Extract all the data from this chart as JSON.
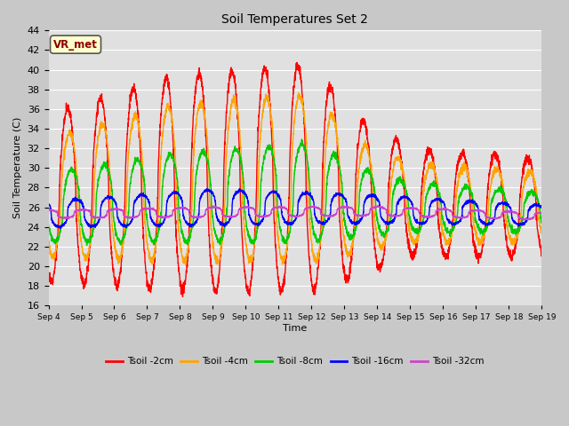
{
  "title": "Soil Temperatures Set 2",
  "xlabel": "Time",
  "ylabel": "Soil Temperature (C)",
  "ylim": [
    16,
    44
  ],
  "x_tick_labels": [
    "Sep 4",
    "Sep 5",
    "Sep 6",
    "Sep 7",
    "Sep 8",
    "Sep 9",
    "Sep 10",
    "Sep 11",
    "Sep 12",
    "Sep 13",
    "Sep 14",
    "Sep 15",
    "Sep 16",
    "Sep 17",
    "Sep 18",
    "Sep 19"
  ],
  "annotation_text": "VR_met",
  "annotation_color": "#8B0000",
  "annotation_bg": "#FFFFCC",
  "fig_bg": "#C8C8C8",
  "plot_bg": "#E0E0E0",
  "grid_color": "#FFFFFF",
  "series": {
    "Tsoil_2cm": {
      "color": "#FF0000",
      "label": "Tsoil -2cm"
    },
    "Tsoil_4cm": {
      "color": "#FFA500",
      "label": "Tsoil -4cm"
    },
    "Tsoil_8cm": {
      "color": "#00CC00",
      "label": "Tsoil -8cm"
    },
    "Tsoil_16cm": {
      "color": "#0000FF",
      "label": "Tsoil -16cm"
    },
    "Tsoil_32cm": {
      "color": "#CC44CC",
      "label": "Tsoil -32cm"
    }
  },
  "lw": 1.0
}
